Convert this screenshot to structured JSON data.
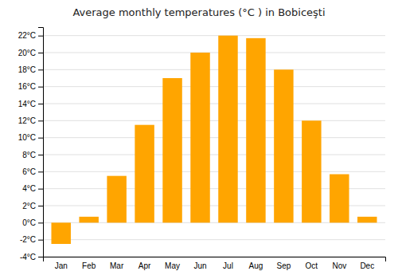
{
  "chart_data": {
    "type": "bar",
    "title": "Average monthly temperatures (°C ) in Bobiceşti",
    "categories": [
      "Jan",
      "Feb",
      "Mar",
      "Apr",
      "May",
      "Jun",
      "Jul",
      "Aug",
      "Sep",
      "Oct",
      "Nov",
      "Dec"
    ],
    "values": [
      -2.5,
      0.7,
      5.5,
      11.5,
      17.0,
      20.0,
      22.0,
      21.7,
      18.0,
      12.0,
      5.7,
      0.7
    ],
    "color": "#FFA500",
    "ylim": [
      -4,
      23
    ],
    "yticks": [
      {
        "value": -4,
        "label": "-4°C"
      },
      {
        "value": -2,
        "label": "-2°C"
      },
      {
        "value": 0,
        "label": "0°C"
      },
      {
        "value": 2,
        "label": "2°C"
      },
      {
        "value": 4,
        "label": "4°C"
      },
      {
        "value": 6,
        "label": "6°C"
      },
      {
        "value": 8,
        "label": "8°C"
      },
      {
        "value": 10,
        "label": "10°C"
      },
      {
        "value": 12,
        "label": "12°C"
      },
      {
        "value": 14,
        "label": "14°C"
      },
      {
        "value": 16,
        "label": "16°C"
      },
      {
        "value": 18,
        "label": "18°C"
      },
      {
        "value": 20,
        "label": "20°C"
      },
      {
        "value": 22,
        "label": "22°C"
      }
    ],
    "grid": true
  }
}
